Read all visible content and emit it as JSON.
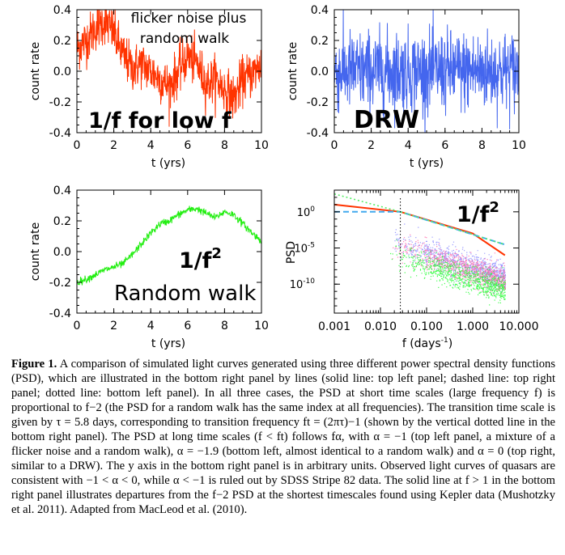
{
  "figure": {
    "panels": {
      "top_left": {
        "ylabel": "count rate",
        "xlabel": "t (yrs)",
        "annotation_1": "flicker noise plus",
        "annotation_2": "random walk",
        "big_label": "1/f for low f",
        "color": "#ff3300"
      },
      "top_right": {
        "ylabel": "count rate",
        "xlabel": "t (yrs)",
        "big_label": "DRW",
        "color": "#4466ee"
      },
      "bottom_left": {
        "ylabel": "count rate",
        "xlabel": "t (yrs)",
        "big_label_base": "1/f",
        "big_label_exp": "2",
        "annotation": "Random walk",
        "color": "#22ee11"
      },
      "bottom_right": {
        "ylabel": "PSD",
        "xlabel": "f (days",
        "xlabel_exp": "-1",
        "xlabel_close": ")",
        "big_label_base": "1/f",
        "big_label_exp": "2"
      }
    },
    "time_ticks": [
      "0",
      "2",
      "4",
      "6",
      "8",
      "10"
    ],
    "y_ticks_top": [
      "0.4",
      "0.2",
      "0.0",
      "-0.2",
      "-0.4"
    ],
    "y_ticks_bottom_left": [
      "0.4",
      "0.2",
      "0.0",
      "-0.2",
      "-0.4"
    ],
    "psd_y_ticks": [
      {
        "base": "10",
        "exp": "0"
      },
      {
        "base": "10",
        "exp": "-5"
      },
      {
        "base": "10",
        "exp": "-10"
      }
    ],
    "psd_x_ticks": [
      "0.001",
      "0.010",
      "0.100",
      "1.000",
      "10.000"
    ]
  },
  "chart_data": [
    {
      "type": "line",
      "panel": "top left",
      "title": "",
      "xlabel": "t (yrs)",
      "ylabel": "count rate",
      "xlim": [
        0,
        10
      ],
      "ylim": [
        -0.4,
        0.4
      ],
      "series": [
        {
          "name": "1/f for low f (flicker noise plus random walk)",
          "x": [
            0,
            0.5,
            1,
            1.5,
            2,
            2.5,
            3,
            3.5,
            4,
            4.5,
            5,
            5.5,
            6,
            6.5,
            7,
            7.5,
            8,
            8.5,
            9,
            9.5,
            10
          ],
          "values": [
            0.15,
            0.2,
            0.28,
            0.33,
            0.25,
            0.1,
            0.02,
            0.05,
            0.0,
            -0.05,
            -0.1,
            0.0,
            0.1,
            0.05,
            -0.08,
            -0.05,
            -0.12,
            -0.18,
            -0.05,
            -0.02,
            0.05
          ]
        }
      ]
    },
    {
      "type": "line",
      "panel": "top right",
      "title": "",
      "xlabel": "t (yrs)",
      "ylabel": "count rate",
      "xlim": [
        0,
        10
      ],
      "ylim": [
        -0.4,
        0.4
      ],
      "series": [
        {
          "name": "DRW",
          "x": [
            0,
            1,
            2,
            3,
            4,
            5,
            6,
            7,
            8,
            9,
            10
          ],
          "values": [
            0.0,
            0.0,
            0.0,
            0.0,
            0.0,
            0.0,
            0.0,
            0.0,
            0.0,
            0.0,
            0.0
          ]
        }
      ]
    },
    {
      "type": "line",
      "panel": "bottom left",
      "title": "",
      "xlabel": "t (yrs)",
      "ylabel": "count rate",
      "xlim": [
        0,
        10
      ],
      "ylim": [
        -0.4,
        0.4
      ],
      "series": [
        {
          "name": "Random walk",
          "x": [
            0,
            0.5,
            1,
            1.5,
            2,
            2.5,
            3,
            3.5,
            4,
            4.5,
            5,
            5.5,
            6,
            6.5,
            7,
            7.5,
            8,
            8.5,
            9,
            9.5,
            10
          ],
          "values": [
            -0.2,
            -0.18,
            -0.15,
            -0.12,
            -0.1,
            -0.08,
            -0.02,
            0.05,
            0.12,
            0.18,
            0.2,
            0.24,
            0.27,
            0.28,
            0.25,
            0.22,
            0.26,
            0.24,
            0.18,
            0.12,
            0.07
          ]
        }
      ]
    },
    {
      "type": "line",
      "panel": "bottom right",
      "title": "",
      "xlabel": "f (days^-1)",
      "ylabel": "PSD",
      "xscale": "log",
      "yscale": "log",
      "xlim": [
        0.001,
        10
      ],
      "ylim": [
        1e-14,
        1000.0
      ],
      "series": [
        {
          "name": "solid (1/f for low f)",
          "x": [
            0.001,
            0.027,
            1.0,
            5.0
          ],
          "values": [
            10,
            1,
            0.001,
            1e-06
          ]
        },
        {
          "name": "dashed (DRW)",
          "x": [
            0.001,
            0.027,
            5.0
          ],
          "values": [
            1,
            1,
            3e-05
          ]
        },
        {
          "name": "dotted (random walk)",
          "x": [
            0.001,
            0.027,
            5.0
          ],
          "values": [
            300,
            1,
            3e-05
          ]
        }
      ],
      "vline_x": 0.027,
      "annotations": [
        "1/f^2"
      ]
    }
  ],
  "caption": {
    "label": "Figure 1.",
    "text": "A comparison of simulated light curves generated using three different power spectral density functions (PSD), which are illustrated in the bottom right panel by lines (solid line: top left panel; dashed line: top right panel; dotted line: bottom left panel). In all three cases, the PSD at short time scales (large frequency f) is proportional to f−2 (the PSD for a random walk has the same index at all frequencies). The transition time scale is given by τ = 5.8 days, corresponding to transition frequency ft = (2πτ)−1 (shown by the vertical dotted line in the bottom right panel). The PSD at long time scales (f < ft) follows fα, with α = −1 (top left panel, a mixture of a flicker noise and a random walk), α = −1.9 (bottom left, almost identical to a random walk) and α = 0 (top right, similar to a DRW). The y axis in the bottom right panel is in arbitrary units. Observed light curves of quasars are consistent with −1 < α < 0, while α < −1 is ruled out by SDSS Stripe 82 data. The solid line at f > 1 in the bottom right panel illustrates departures from the f−2 PSD at the shortest timescales found using Kepler data (Mushotzky et al. 2011). Adapted from MacLeod et al. (2010)."
  }
}
